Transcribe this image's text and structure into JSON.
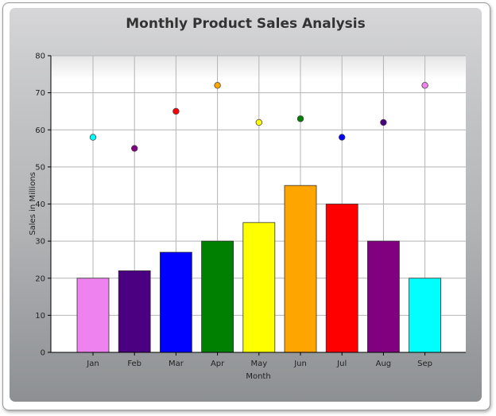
{
  "chart_data": {
    "type": "bar",
    "title": "Monthly Product Sales Analysis",
    "xlabel": "Month",
    "ylabel": "Sales in Millions",
    "ylim": [
      0,
      80
    ],
    "yticks": [
      0,
      10,
      20,
      30,
      40,
      50,
      60,
      70,
      80
    ],
    "grid": true,
    "categories": [
      "Jan",
      "Feb",
      "Mar",
      "Apr",
      "May",
      "Jun",
      "Jul",
      "Aug",
      "Sep"
    ],
    "series": [
      {
        "type": "bar",
        "values": [
          20,
          22,
          27,
          30,
          35,
          45,
          40,
          30,
          20
        ],
        "colors": [
          "#ee82ee",
          "#4b0082",
          "#0000ff",
          "#008000",
          "#ffff00",
          "#ffa500",
          "#ff0000",
          "#800080",
          "#00ffff"
        ]
      },
      {
        "type": "scatter",
        "values": [
          58,
          55,
          65,
          72,
          62,
          63,
          58,
          62,
          72
        ],
        "colors": [
          "#00ffff",
          "#800080",
          "#ff0000",
          "#ffa500",
          "#ffff00",
          "#008000",
          "#0000ff",
          "#4b0082",
          "#ee82ee"
        ]
      }
    ]
  }
}
